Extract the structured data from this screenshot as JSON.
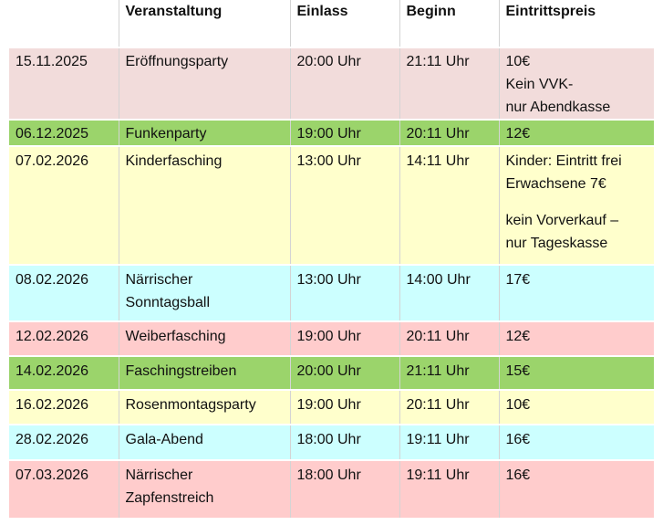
{
  "table": {
    "header": [
      "",
      "Veranstaltung",
      "Einlass",
      "Beginn",
      "Eintrittspreis"
    ],
    "rows": [
      {
        "cells": [
          [
            [
              "15.11.2025"
            ]
          ],
          [
            [
              "Eröffnungsparty"
            ]
          ],
          [
            [
              "20:00 Uhr"
            ]
          ],
          [
            [
              "21:11 Uhr"
            ]
          ],
          [
            [
              "10€",
              "Kein VVK-",
              "nur Abendkasse"
            ]
          ]
        ]
      },
      {
        "cells": [
          [
            [
              "06.12.2025"
            ]
          ],
          [
            [
              "Funkenparty"
            ]
          ],
          [
            [
              "19:00 Uhr"
            ]
          ],
          [
            [
              "20:11 Uhr"
            ]
          ],
          [
            [
              "12€"
            ]
          ]
        ]
      },
      {
        "cells": [
          [
            [
              "07.02.2026"
            ]
          ],
          [
            [
              "Kinderfasching"
            ]
          ],
          [
            [
              "13:00 Uhr"
            ]
          ],
          [
            [
              "14:11 Uhr"
            ]
          ],
          [
            [
              "Kinder: Eintritt frei",
              "Erwachsene 7€"
            ],
            [
              "kein Vorverkauf –",
              "nur Tageskasse"
            ]
          ]
        ]
      },
      {
        "cells": [
          [
            [
              "08.02.2026"
            ]
          ],
          [
            [
              "Närrischer",
              "Sonntagsball"
            ]
          ],
          [
            [
              "13:00 Uhr"
            ]
          ],
          [
            [
              "14:00 Uhr"
            ]
          ],
          [
            [
              "17€"
            ]
          ]
        ]
      },
      {
        "cells": [
          [
            [
              "12.02.2026"
            ]
          ],
          [
            [
              "Weiberfasching"
            ]
          ],
          [
            [
              "19:00 Uhr"
            ]
          ],
          [
            [
              "20:11 Uhr"
            ]
          ],
          [
            [
              "12€"
            ]
          ]
        ]
      },
      {
        "cells": [
          [
            [
              "14.02.2026"
            ]
          ],
          [
            [
              "Faschingstreiben"
            ]
          ],
          [
            [
              "20:00 Uhr"
            ]
          ],
          [
            [
              "21:11 Uhr"
            ]
          ],
          [
            [
              "15€"
            ]
          ]
        ]
      },
      {
        "cells": [
          [
            [
              "16.02.2026"
            ]
          ],
          [
            [
              "Rosenmontagsparty"
            ]
          ],
          [
            [
              "19:00 Uhr"
            ]
          ],
          [
            [
              "20:11 Uhr"
            ]
          ],
          [
            [
              "10€"
            ]
          ]
        ]
      },
      {
        "cells": [
          [
            [
              "28.02.2026"
            ]
          ],
          [
            [
              "Gala-Abend"
            ]
          ],
          [
            [
              "18:00 Uhr"
            ]
          ],
          [
            [
              "19:11 Uhr"
            ]
          ],
          [
            [
              "16€"
            ]
          ]
        ]
      },
      {
        "cells": [
          [
            [
              "07.03.2026"
            ]
          ],
          [
            [
              "Närrischer",
              "Zapfenstreich"
            ]
          ],
          [
            [
              "18:00 Uhr"
            ]
          ],
          [
            [
              "19:11 Uhr"
            ]
          ],
          [
            [
              "16€"
            ]
          ]
        ]
      }
    ]
  }
}
